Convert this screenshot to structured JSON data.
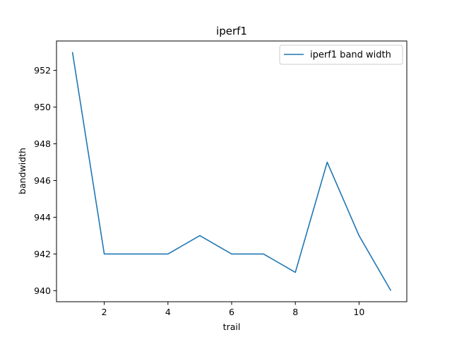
{
  "chart_data": {
    "type": "line",
    "title": "iperf1",
    "xlabel": "trail",
    "ylabel": "bandwidth",
    "x": [
      1,
      2,
      3,
      4,
      5,
      6,
      7,
      8,
      9,
      10,
      11
    ],
    "series": [
      {
        "name": "iperf1 band width",
        "color": "#1f77b4",
        "values": [
          953,
          942,
          942,
          942,
          943,
          942,
          942,
          941,
          947,
          943,
          940
        ]
      }
    ],
    "xlim": [
      0.5,
      11.5
    ],
    "ylim": [
      939.4,
      953.6
    ],
    "xticks": [
      2,
      4,
      6,
      8,
      10
    ],
    "yticks": [
      940,
      942,
      944,
      946,
      948,
      950,
      952
    ],
    "grid": false,
    "legend_position": "upper right"
  }
}
